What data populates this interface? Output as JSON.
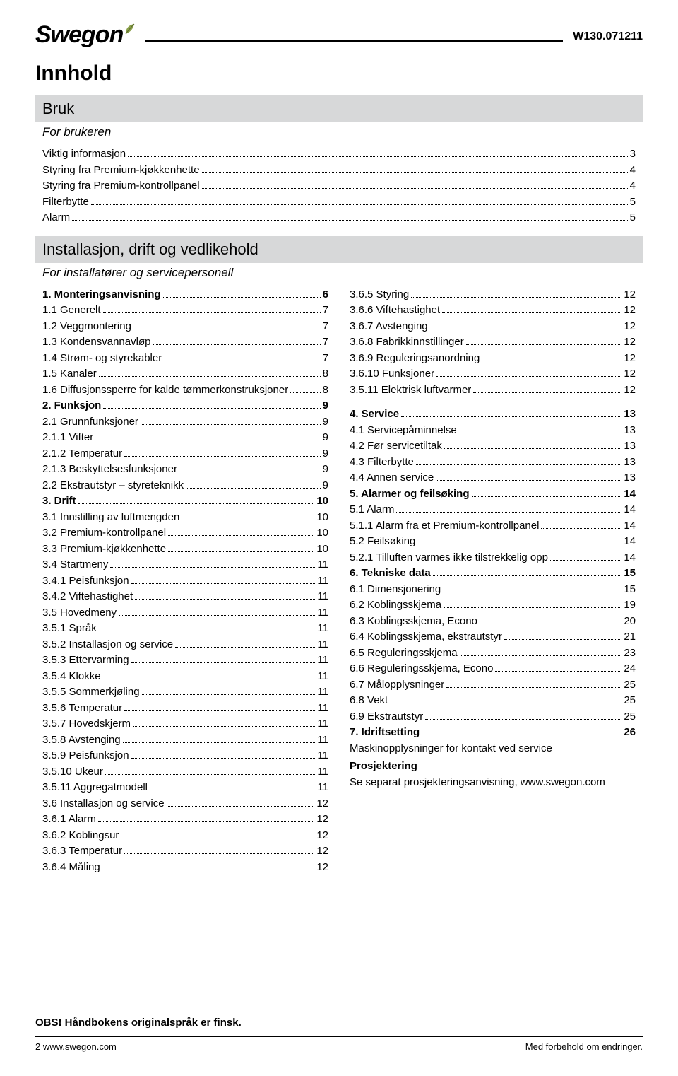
{
  "header": {
    "logo_text": "Swegon",
    "doc_code": "W130.071211"
  },
  "title": "Innhold",
  "bruk": {
    "band": "Bruk",
    "sub": "For brukeren",
    "items": [
      {
        "label": "Viktig informasjon",
        "page": "3"
      },
      {
        "label": "Styring fra Premium-kjøkkenhette",
        "page": "4"
      },
      {
        "label": "Styring fra Premium-kontrollpanel",
        "page": "4"
      },
      {
        "label": "Filterbytte",
        "page": "5"
      },
      {
        "label": "Alarm",
        "page": "5"
      }
    ]
  },
  "install": {
    "band": "Installasjon, drift og vedlikehold",
    "sub": "For installatører og servicepersonell"
  },
  "left": [
    {
      "label": "1. Monteringsanvisning",
      "page": "6",
      "bold": true
    },
    {
      "label": "1.1 Generelt",
      "page": "7"
    },
    {
      "label": "1.2 Veggmontering",
      "page": "7"
    },
    {
      "label": "1.3 Kondensvannavløp",
      "page": "7"
    },
    {
      "label": "1.4 Strøm- og styrekabler",
      "page": "7"
    },
    {
      "label": "1.5 Kanaler",
      "page": "8"
    },
    {
      "label": "1.6 Diffusjonssperre for kalde tømmerkonstruksjoner",
      "page": "8"
    },
    {
      "label": "2. Funksjon",
      "page": "9",
      "bold": true
    },
    {
      "label": "2.1 Grunnfunksjoner",
      "page": "9"
    },
    {
      "label": "2.1.1 Vifter",
      "page": "9"
    },
    {
      "label": "2.1.2 Temperatur",
      "page": "9"
    },
    {
      "label": "2.1.3 Beskyttelsesfunksjoner",
      "page": "9"
    },
    {
      "label": "2.2 Ekstrautstyr – styreteknikk",
      "page": "9"
    },
    {
      "label": "3. Drift",
      "page": "10",
      "bold": true
    },
    {
      "label": "3.1 Innstilling av luftmengden",
      "page": "10"
    },
    {
      "label": "3.2 Premium-kontrollpanel",
      "page": "10"
    },
    {
      "label": "3.3 Premium-kjøkkenhette",
      "page": "10"
    },
    {
      "label": "3.4 Startmeny",
      "page": "11"
    },
    {
      "label": "3.4.1 Peisfunksjon",
      "page": "11"
    },
    {
      "label": "3.4.2 Viftehastighet",
      "page": "11"
    },
    {
      "label": "3.5 Hovedmeny",
      "page": "11"
    },
    {
      "label": "3.5.1 Språk",
      "page": "11"
    },
    {
      "label": "3.5.2 Installasjon og service",
      "page": "11"
    },
    {
      "label": "3.5.3 Ettervarming",
      "page": "11"
    },
    {
      "label": "3.5.4 Klokke",
      "page": "11"
    },
    {
      "label": "3.5.5 Sommerkjøling",
      "page": "11"
    },
    {
      "label": "3.5.6 Temperatur",
      "page": "11"
    },
    {
      "label": "3.5.7 Hovedskjerm",
      "page": "11"
    },
    {
      "label": "3.5.8 Avstenging",
      "page": "11"
    },
    {
      "label": "3.5.9 Peisfunksjon",
      "page": "11"
    },
    {
      "label": "3.5.10 Ukeur",
      "page": "11"
    },
    {
      "label": "3.5.11 Aggregatmodell",
      "page": "11"
    },
    {
      "label": "3.6 Installasjon og service",
      "page": "12"
    },
    {
      "label": "3.6.1 Alarm",
      "page": "12"
    },
    {
      "label": "3.6.2 Koblingsur",
      "page": "12"
    },
    {
      "label": "3.6.3 Temperatur",
      "page": "12"
    },
    {
      "label": "3.6.4 Måling",
      "page": "12"
    }
  ],
  "right": [
    {
      "label": "3.6.5 Styring",
      "page": "12"
    },
    {
      "label": "3.6.6 Viftehastighet",
      "page": "12"
    },
    {
      "label": "3.6.7 Avstenging",
      "page": "12"
    },
    {
      "label": "3.6.8 Fabrikkinnstillinger",
      "page": "12"
    },
    {
      "label": "3.6.9 Reguleringsanordning",
      "page": "12"
    },
    {
      "label": "3.6.10 Funksjoner",
      "page": "12"
    },
    {
      "label": "3.5.11 Elektrisk luftvarmer",
      "page": "12"
    },
    {
      "label": "4. Service",
      "page": "13",
      "bold": true,
      "gap": true
    },
    {
      "label": "4.1 Servicepåminnelse",
      "page": "13"
    },
    {
      "label": "4.2 Før servicetiltak",
      "page": "13"
    },
    {
      "label": "4.3 Filterbytte",
      "page": "13"
    },
    {
      "label": "4.4 Annen service",
      "page": "13"
    },
    {
      "label": "5. Alarmer og feilsøking",
      "page": "14",
      "bold": true
    },
    {
      "label": "5.1 Alarm",
      "page": "14"
    },
    {
      "label": "5.1.1 Alarm fra et Premium-kontrollpanel",
      "page": "14"
    },
    {
      "label": "5.2 Feilsøking",
      "page": "14"
    },
    {
      "label": "5.2.1 Tilluften varmes ikke tilstrekkelig opp",
      "page": "14"
    },
    {
      "label": "6. Tekniske data",
      "page": "15",
      "bold": true
    },
    {
      "label": "6.1 Dimensjonering",
      "page": "15"
    },
    {
      "label": "6.2 Koblingsskjema",
      "page": "19"
    },
    {
      "label": "6.3 Koblingsskjema, Econo",
      "page": "20"
    },
    {
      "label": "6.4 Koblingsskjema, ekstrautstyr",
      "page": "21"
    },
    {
      "label": "6.5 Reguleringsskjema",
      "page": "23"
    },
    {
      "label": "6.6 Reguleringsskjema, Econo",
      "page": "24"
    },
    {
      "label": "6.7 Målopplysninger",
      "page": "25"
    },
    {
      "label": "6.8 Vekt",
      "page": "25"
    },
    {
      "label": "6.9 Ekstrautstyr",
      "page": "25"
    },
    {
      "label": "7. Idriftsetting",
      "page": "26",
      "bold": true
    }
  ],
  "right_trailing": {
    "line1": "Maskinopplysninger for kontakt ved service",
    "heading": "Prosjektering",
    "line2": "Se separat prosjekteringsanvisning, www.swegon.com"
  },
  "footer": {
    "note": "OBS! Håndbokens originalspråk er finsk.",
    "left": "2 www.swegon.com",
    "right": "Med forbehold om endringer."
  },
  "colors": {
    "band_bg": "#d7d8d9",
    "text": "#000000",
    "bg": "#ffffff"
  }
}
